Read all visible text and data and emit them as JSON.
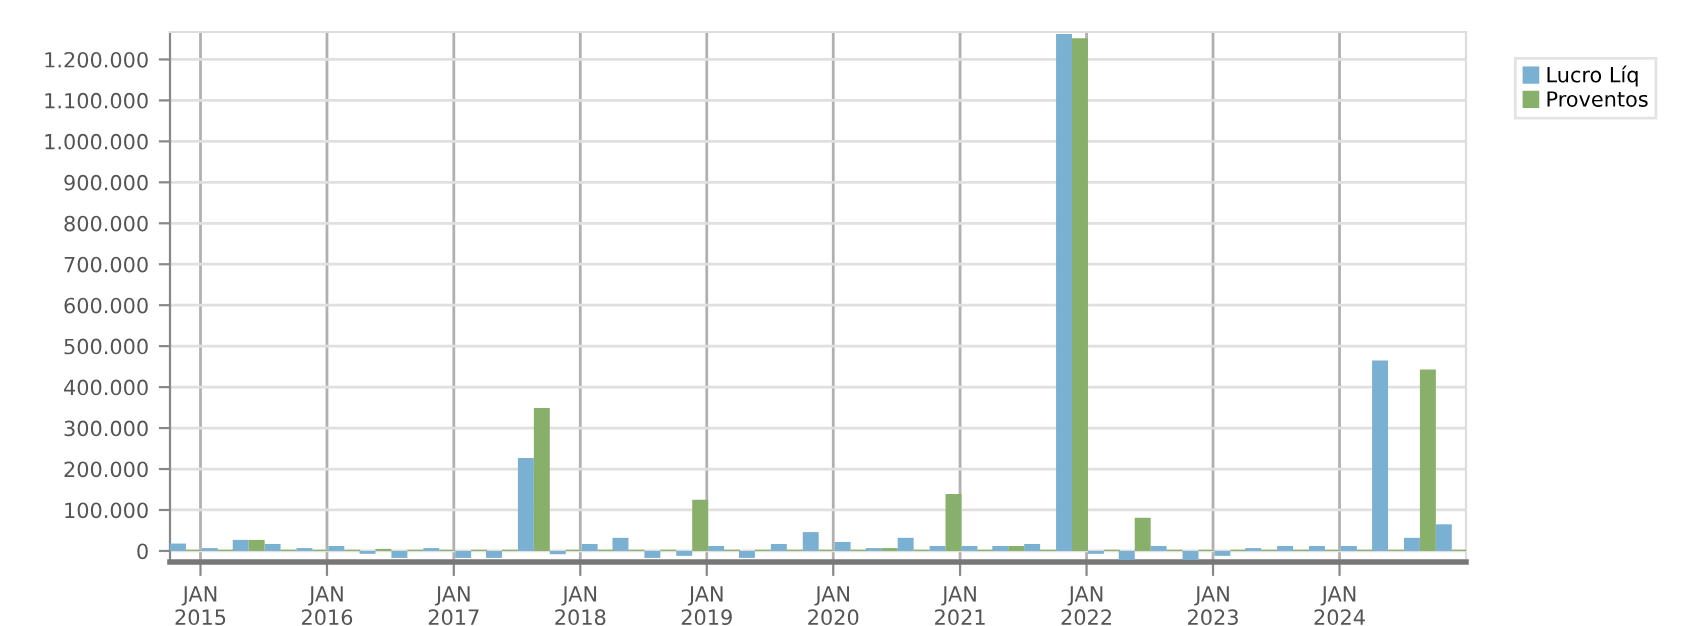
{
  "chart_data": {
    "type": "bar",
    "x": [
      "2014-11-20",
      "2015-02-20",
      "2015-05-20",
      "2015-08-20",
      "2015-11-20",
      "2016-02-20",
      "2016-05-20",
      "2016-08-20",
      "2016-11-20",
      "2017-02-20",
      "2017-05-20",
      "2017-08-20",
      "2017-11-20",
      "2018-02-20",
      "2018-05-20",
      "2018-08-20",
      "2018-11-20",
      "2019-02-20",
      "2019-05-20",
      "2019-08-20",
      "2019-11-20",
      "2020-02-20",
      "2020-05-20",
      "2020-08-20",
      "2020-11-20",
      "2021-02-20",
      "2021-05-20",
      "2021-08-20",
      "2021-11-20",
      "2022-02-20",
      "2022-05-20",
      "2022-08-20",
      "2022-11-20",
      "2023-02-20",
      "2023-05-20",
      "2023-08-20",
      "2023-11-20",
      "2024-02-20",
      "2024-05-20",
      "2024-08-20",
      "2024-11-20"
    ],
    "series": [
      {
        "name": "Lucro Líq",
        "color": "#7ab0d2",
        "values": [
          18000,
          7000,
          27000,
          17000,
          7000,
          12000,
          -7000,
          -17000,
          7000,
          -17000,
          -17000,
          227000,
          -8000,
          17000,
          32000,
          -17000,
          -12000,
          12000,
          -17000,
          17000,
          46000,
          22000,
          7000,
          32000,
          12000,
          12000,
          12000,
          17000,
          1262000,
          -7000,
          -22000,
          12000,
          -22000,
          -12000,
          7000,
          12000,
          12000,
          12000,
          465000,
          32000,
          65000
        ]
      },
      {
        "name": "Proventos",
        "color": "#88b06a",
        "values": [
          3000,
          3000,
          27000,
          3000,
          3000,
          3000,
          5000,
          3000,
          3000,
          3000,
          3000,
          349000,
          3000,
          3000,
          3000,
          3000,
          125000,
          3000,
          3000,
          3000,
          3000,
          3000,
          7000,
          3000,
          139000,
          3000,
          12000,
          3000,
          1252000,
          3000,
          81000,
          3000,
          3000,
          3000,
          3000,
          3000,
          3000,
          3000,
          3000,
          443000,
          3000
        ]
      }
    ],
    "xlim": [
      "2014-10-05",
      "2024-12-31"
    ],
    "xticks": [
      {
        "value": "2015-01-01",
        "label": "JAN\n2015"
      },
      {
        "value": "2016-01-01",
        "label": "JAN\n2016"
      },
      {
        "value": "2017-01-01",
        "label": "JAN\n2017"
      },
      {
        "value": "2018-01-01",
        "label": "JAN\n2018"
      },
      {
        "value": "2019-01-01",
        "label": "JAN\n2019"
      },
      {
        "value": "2020-01-01",
        "label": "JAN\n2020"
      },
      {
        "value": "2021-01-01",
        "label": "JAN\n2021"
      },
      {
        "value": "2022-01-01",
        "label": "JAN\n2022"
      },
      {
        "value": "2023-01-01",
        "label": "JAN\n2023"
      },
      {
        "value": "2024-01-01",
        "label": "JAN\n2024"
      }
    ],
    "ylim": [
      -27000,
      1267000
    ],
    "yticks": [
      0,
      {
        "value": 100000,
        "label": "100.000"
      },
      {
        "value": 200000,
        "label": "200.000"
      },
      {
        "value": 300000,
        "label": "300.000"
      },
      {
        "value": 400000,
        "label": "400.000"
      },
      {
        "value": 500000,
        "label": "500.000"
      },
      {
        "value": 600000,
        "label": "600.000"
      },
      {
        "value": 700000,
        "label": "700.000"
      },
      {
        "value": 800000,
        "label": "800.000"
      },
      {
        "value": 900000,
        "label": "900.000"
      },
      {
        "value": 1000000,
        "label": "1.000.000"
      },
      {
        "value": 1100000,
        "label": "1.100.000"
      },
      {
        "value": 1200000,
        "label": "1.200.000"
      }
    ],
    "grid": true,
    "legend": "top right"
  }
}
